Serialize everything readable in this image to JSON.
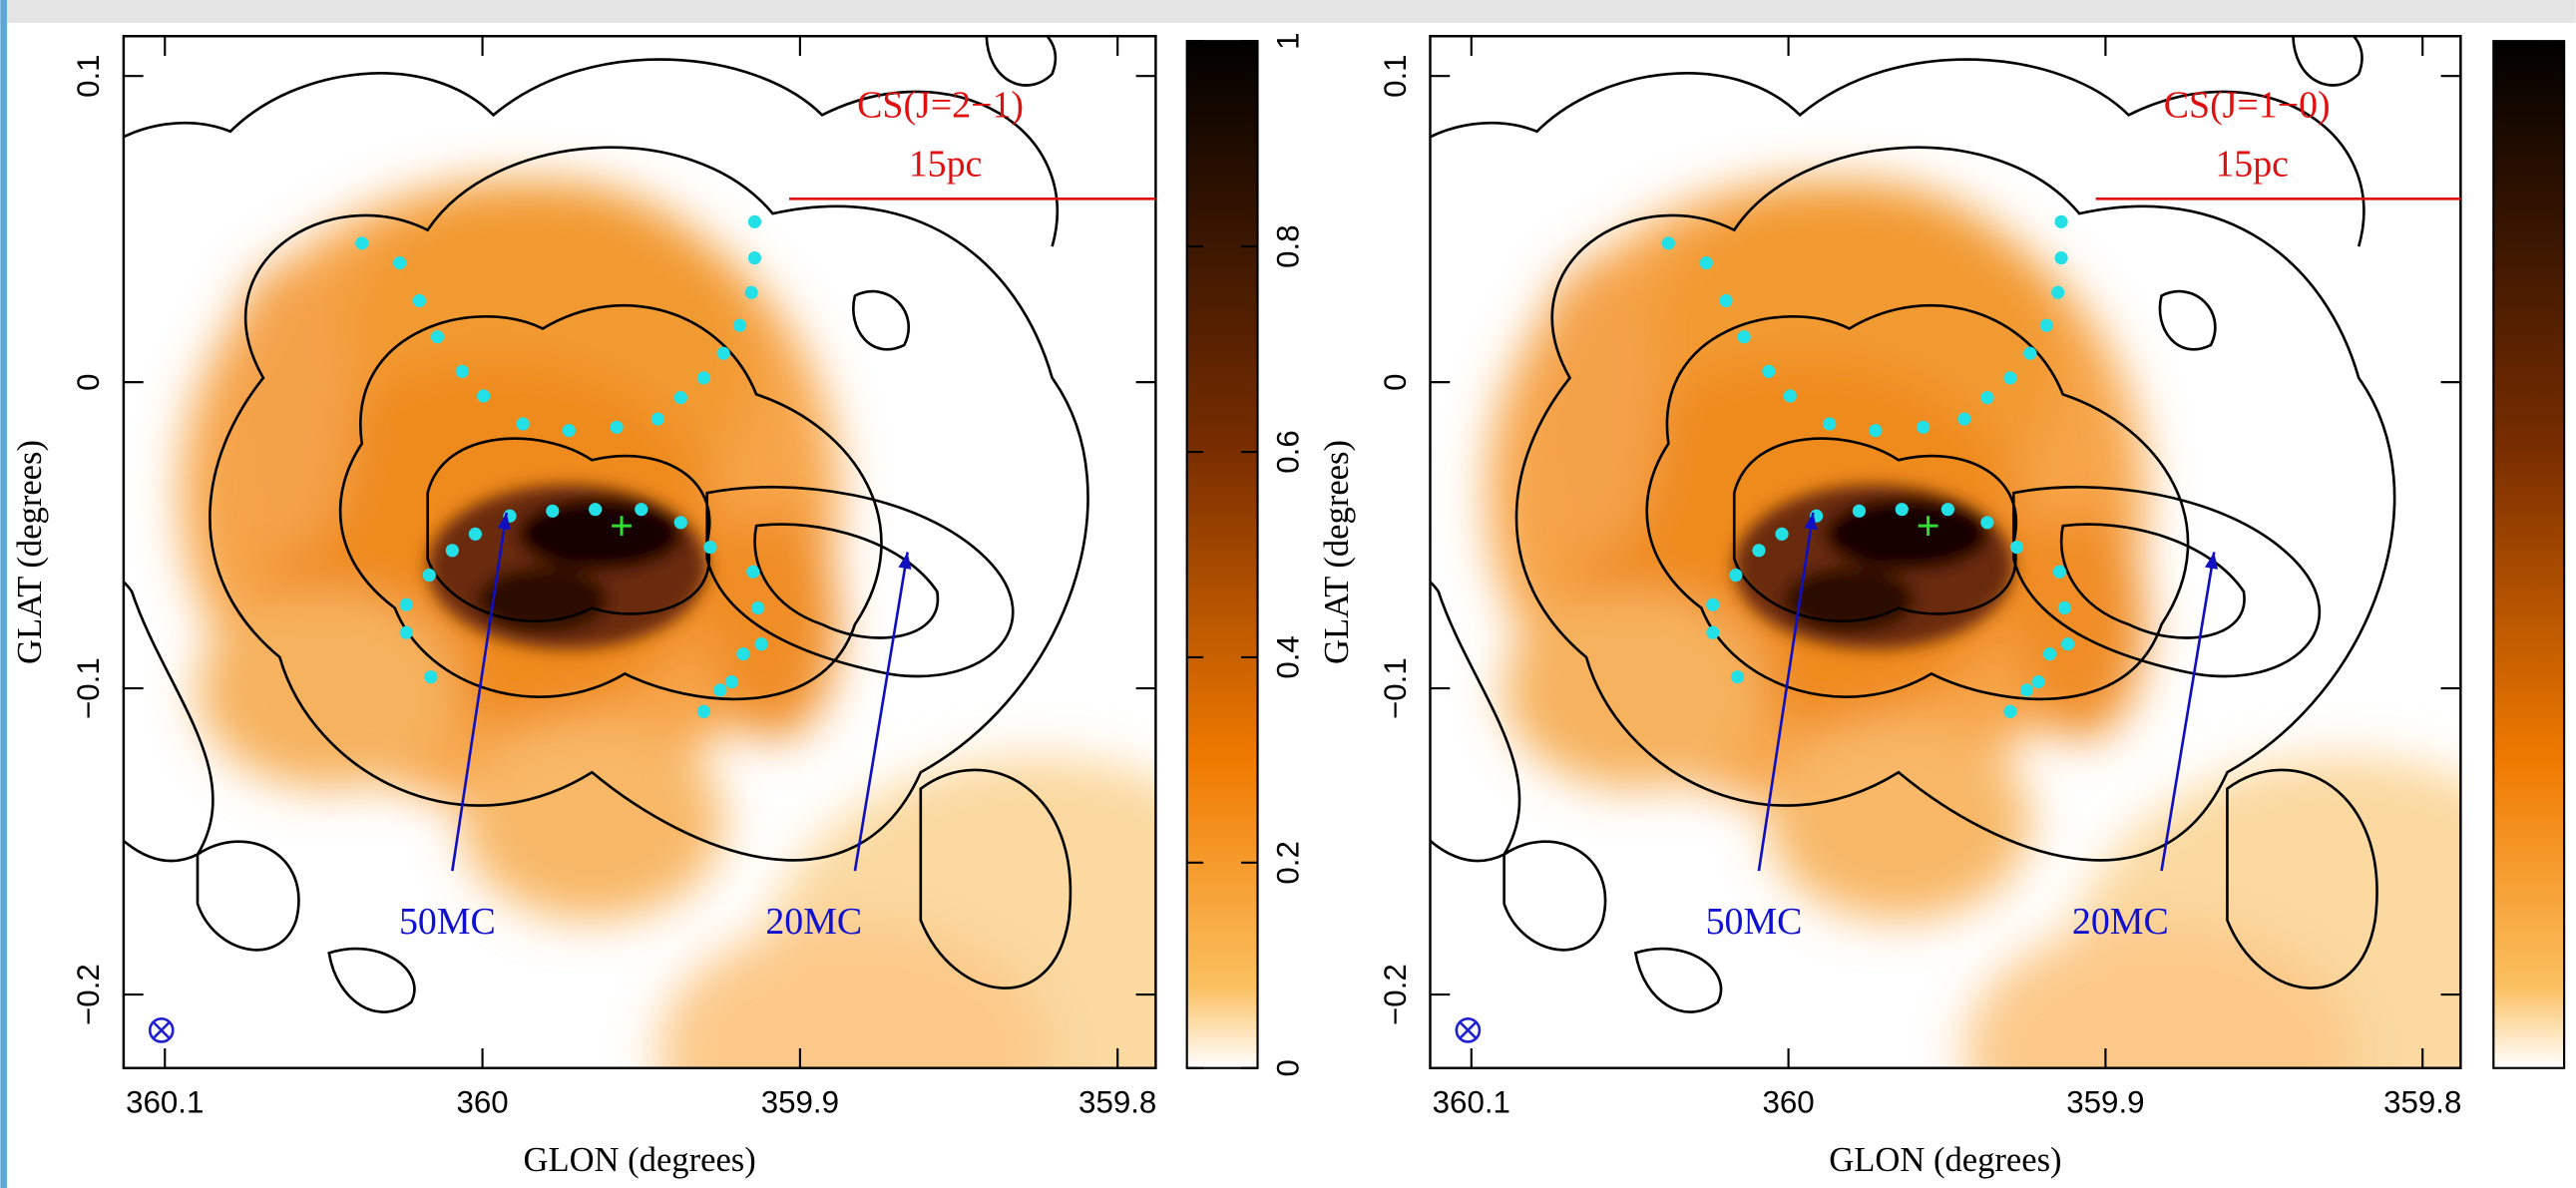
{
  "chart_data": [
    {
      "type": "image",
      "label": "CS(J=2−1)",
      "scale_label": "15pc",
      "annotations": [
        "50MC",
        "20MC"
      ],
      "xlabel": "GLON (degrees)",
      "ylabel": "GLAT (degrees)",
      "xlim": [
        360.113,
        359.788
      ],
      "ylim": [
        -0.224,
        0.113
      ],
      "xticks": [
        360.1,
        360,
        359.9,
        359.8
      ],
      "yticks": [
        {
          "value": -0.2,
          "label": "−0.2"
        },
        {
          "value": -0.1,
          "label": "−0.1"
        },
        0,
        0.1
      ],
      "colorbar": {
        "lim": [
          0,
          1
        ],
        "ticks": [
          0,
          0.2,
          0.4,
          0.6,
          0.8,
          1
        ]
      }
    },
    {
      "type": "image",
      "label": "CS(J=1−0)",
      "scale_label": "15pc",
      "annotations": [
        "50MC",
        "20MC"
      ],
      "xlabel": "GLON (degrees)",
      "ylabel": "GLAT (degrees)",
      "xlim": [
        360.113,
        359.788
      ],
      "ylim": [
        -0.224,
        0.113
      ],
      "xticks": [
        360.1,
        360,
        359.9,
        359.8
      ],
      "yticks": [
        {
          "value": -0.2,
          "label": "−0.2"
        },
        {
          "value": -0.1,
          "label": "−0.1"
        },
        0,
        0.1
      ],
      "colorbar": {
        "lim": [
          0,
          1
        ]
      }
    }
  ]
}
